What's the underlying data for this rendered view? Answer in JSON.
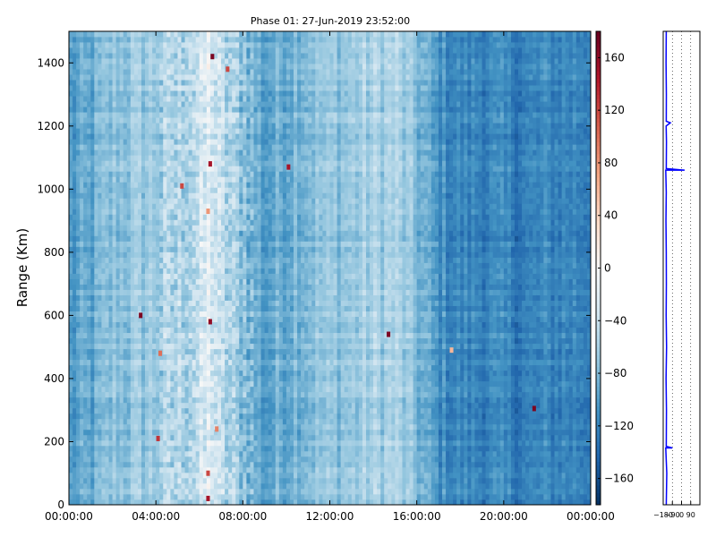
{
  "chart_data": [
    {
      "type": "heatmap",
      "title": "Phase 01: 27-Jun-2019 23:52:00",
      "xlabel": "",
      "ylabel": "Range (Km)",
      "x_ticks": [
        "00:00:00",
        "04:00:00",
        "08:00:00",
        "12:00:00",
        "16:00:00",
        "20:00:00",
        "00:00:00"
      ],
      "x_range_hours": [
        0,
        24
      ],
      "y_ticks": [
        0,
        200,
        400,
        600,
        800,
        1000,
        1200,
        1400
      ],
      "ylim": [
        0,
        1500
      ],
      "colormap": "RdBu_r",
      "colorbar": {
        "ticks": [
          -160,
          -120,
          -80,
          -40,
          0,
          40,
          80,
          120,
          160
        ],
        "range": [
          -180,
          180
        ]
      },
      "phase_profile_deg_by_hour": [
        {
          "hour": 0,
          "phase": -105
        },
        {
          "hour": 1,
          "phase": -95
        },
        {
          "hour": 2,
          "phase": -75
        },
        {
          "hour": 3,
          "phase": -70
        },
        {
          "hour": 4,
          "phase": -65
        },
        {
          "hour": 5,
          "phase": -55
        },
        {
          "hour": 6,
          "phase": -45
        },
        {
          "hour": 6.5,
          "phase": -20
        },
        {
          "hour": 7,
          "phase": -50
        },
        {
          "hour": 8,
          "phase": -70
        },
        {
          "hour": 9,
          "phase": -100
        },
        {
          "hour": 10,
          "phase": -85
        },
        {
          "hour": 11,
          "phase": -75
        },
        {
          "hour": 12,
          "phase": -72
        },
        {
          "hour": 13,
          "phase": -68
        },
        {
          "hour": 14,
          "phase": -62
        },
        {
          "hour": 15,
          "phase": -58
        },
        {
          "hour": 16,
          "phase": -80
        },
        {
          "hour": 17,
          "phase": -110
        },
        {
          "hour": 18,
          "phase": -120
        },
        {
          "hour": 19,
          "phase": -118
        },
        {
          "hour": 20,
          "phase": -122
        },
        {
          "hour": 21,
          "phase": -125
        },
        {
          "hour": 22,
          "phase": -120
        },
        {
          "hour": 23,
          "phase": -118
        },
        {
          "hour": 24,
          "phase": -120
        }
      ],
      "outliers": [
        {
          "hour": 6.4,
          "range_km": 20,
          "phase": 150
        },
        {
          "hour": 6.4,
          "range_km": 100,
          "phase": 120
        },
        {
          "hour": 6.5,
          "range_km": 580,
          "phase": 160
        },
        {
          "hour": 6.5,
          "range_km": 1080,
          "phase": 150
        },
        {
          "hour": 6.6,
          "range_km": 1420,
          "phase": 170
        },
        {
          "hour": 5.2,
          "range_km": 1010,
          "phase": 120
        },
        {
          "hour": 3.3,
          "range_km": 600,
          "phase": 170
        },
        {
          "hour": 4.2,
          "range_km": 480,
          "phase": 100
        },
        {
          "hour": 10.1,
          "range_km": 1070,
          "phase": 150
        },
        {
          "hour": 14.7,
          "range_km": 540,
          "phase": 170
        },
        {
          "hour": 21.4,
          "range_km": 305,
          "phase": 170
        },
        {
          "hour": 7.3,
          "range_km": 1380,
          "phase": 120
        },
        {
          "hour": 6.8,
          "range_km": 240,
          "phase": 90
        },
        {
          "hour": 4.1,
          "range_km": 210,
          "phase": 130
        },
        {
          "hour": 17.6,
          "range_km": 490,
          "phase": 60
        },
        {
          "hour": 6.4,
          "range_km": 930,
          "phase": 80
        }
      ]
    },
    {
      "type": "line",
      "xlabel": "",
      "ylabel": "",
      "x_ticks": [
        "-180",
        "-90",
        "0",
        "90"
      ],
      "xlim": [
        -180,
        180
      ],
      "ylim": [
        0,
        1500
      ],
      "grid": true,
      "series": [
        {
          "color": "#0000ff",
          "points": [
            {
              "x": -150,
              "y": 0
            },
            {
              "x": -145,
              "y": 100
            },
            {
              "x": -155,
              "y": 180
            },
            {
              "x": -90,
              "y": 180
            },
            {
              "x": -150,
              "y": 185
            },
            {
              "x": -148,
              "y": 300
            },
            {
              "x": -152,
              "y": 400
            },
            {
              "x": -147,
              "y": 500
            },
            {
              "x": -151,
              "y": 600
            },
            {
              "x": -149,
              "y": 700
            },
            {
              "x": -150,
              "y": 800
            },
            {
              "x": -153,
              "y": 900
            },
            {
              "x": -150,
              "y": 990
            },
            {
              "x": -155,
              "y": 1060
            },
            {
              "x": 30,
              "y": 1060
            },
            {
              "x": -150,
              "y": 1065
            },
            {
              "x": -148,
              "y": 1150
            },
            {
              "x": -151,
              "y": 1200
            },
            {
              "x": -110,
              "y": 1210
            },
            {
              "x": -150,
              "y": 1215
            },
            {
              "x": -149,
              "y": 1300
            },
            {
              "x": -152,
              "y": 1400
            },
            {
              "x": -150,
              "y": 1500
            }
          ]
        }
      ]
    }
  ]
}
